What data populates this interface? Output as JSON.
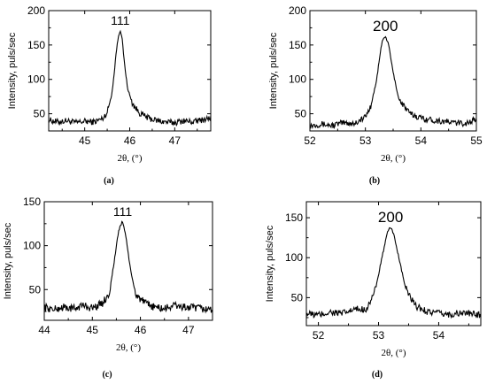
{
  "chart_data": [
    {
      "type": "line",
      "panel_caption": "(a)",
      "peak_label": "111",
      "xlabel": "2θ, (°)",
      "ylabel": "Intensity, puls/sec",
      "xlim": [
        44.2,
        47.8
      ],
      "ylim": [
        25,
        200
      ],
      "xticks": [
        45,
        46,
        47
      ],
      "yticks": [
        50,
        100,
        150,
        200
      ],
      "grid": false,
      "peak": {
        "center": 45.79,
        "height": 172,
        "baseline": 38,
        "width": 0.1
      },
      "series": [
        {
          "x": [
            44.2,
            44.4,
            44.6,
            44.8,
            45.0,
            45.2,
            45.4,
            45.5,
            45.6,
            45.65,
            45.7,
            45.75,
            45.79,
            45.83,
            45.88,
            45.95,
            46.05,
            46.2,
            46.4,
            46.6,
            46.8,
            47.0,
            47.2,
            47.4,
            47.6,
            47.8
          ],
          "y": [
            41,
            38,
            40,
            37,
            39,
            38,
            43,
            52,
            78,
            105,
            140,
            163,
            172,
            160,
            125,
            88,
            66,
            52,
            44,
            40,
            38,
            37,
            40,
            38,
            41,
            44
          ]
        }
      ]
    },
    {
      "type": "line",
      "panel_caption": "(b)",
      "peak_label": "200",
      "xlabel": "2θ, (°)",
      "ylabel": "Intensity, puls/sec",
      "xlim": [
        52,
        55
      ],
      "ylim": [
        25,
        200
      ],
      "xticks": [
        52,
        53,
        54,
        55
      ],
      "yticks": [
        50,
        100,
        150,
        200
      ],
      "grid": false,
      "peak": {
        "center": 53.36,
        "height": 163,
        "baseline": 36,
        "width": 0.1
      },
      "series": [
        {
          "x": [
            52.0,
            52.2,
            52.4,
            52.6,
            52.8,
            53.0,
            53.1,
            53.2,
            53.25,
            53.3,
            53.36,
            53.42,
            53.5,
            53.6,
            53.8,
            54.0,
            54.2,
            54.4,
            54.6,
            54.8,
            55.0
          ],
          "y": [
            33,
            35,
            33,
            37,
            36,
            45,
            62,
            98,
            128,
            155,
            163,
            150,
            110,
            72,
            50,
            44,
            41,
            39,
            37,
            36,
            42
          ]
        }
      ]
    },
    {
      "type": "line",
      "panel_caption": "(c)",
      "peak_label": "111",
      "xlabel": "2θ, (°)",
      "ylabel": "Intensity, puls/sec",
      "xlim": [
        44,
        47.5
      ],
      "ylim": [
        15,
        150
      ],
      "xticks": [
        44,
        45,
        46,
        47
      ],
      "yticks": [
        50,
        100,
        150
      ],
      "grid": false,
      "peak": {
        "center": 45.63,
        "height": 128,
        "baseline": 28,
        "width": 0.1
      },
      "series": [
        {
          "x": [
            44.0,
            44.2,
            44.4,
            44.6,
            44.8,
            45.0,
            45.2,
            45.35,
            45.45,
            45.55,
            45.63,
            45.7,
            45.8,
            45.9,
            46.1,
            46.3,
            46.5,
            46.7,
            46.9,
            47.1,
            47.3,
            47.5
          ],
          "y": [
            30,
            27,
            30,
            28,
            32,
            29,
            34,
            45,
            80,
            118,
            128,
            110,
            70,
            45,
            34,
            30,
            28,
            32,
            30,
            29,
            28,
            27
          ]
        }
      ]
    },
    {
      "type": "line",
      "panel_caption": "(d)",
      "peak_label": "200",
      "xlabel": "2θ, (°)",
      "ylabel": "Intensity, puls/sec",
      "xlim": [
        51.8,
        54.7
      ],
      "ylim": [
        15,
        170
      ],
      "xticks": [
        52,
        53,
        54
      ],
      "yticks": [
        50,
        100,
        150
      ],
      "grid": false,
      "peak": {
        "center": 53.2,
        "height": 138,
        "baseline": 28,
        "width": 0.1
      },
      "series": [
        {
          "x": [
            51.8,
            52.0,
            52.2,
            52.4,
            52.6,
            52.8,
            52.95,
            53.05,
            53.15,
            53.2,
            53.26,
            53.35,
            53.45,
            53.6,
            53.8,
            54.0,
            54.2,
            54.4,
            54.6
          ],
          "y": [
            30,
            28,
            32,
            30,
            35,
            36,
            60,
            98,
            132,
            138,
            128,
            95,
            62,
            40,
            33,
            30,
            29,
            31,
            29
          ]
        }
      ]
    }
  ]
}
